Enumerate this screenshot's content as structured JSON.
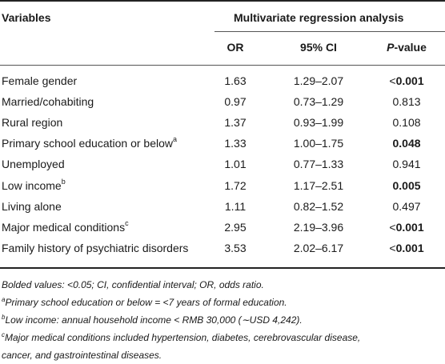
{
  "header": {
    "variables": "Variables",
    "group": "Multivariate regression analysis",
    "or": "OR",
    "ci": "95% CI",
    "p_italic": "P",
    "p_rest": "-value"
  },
  "rows": [
    {
      "variable": "Female gender",
      "sup": "",
      "or": "1.63",
      "ci": "1.29–2.07",
      "p_prefix": "<",
      "p": "0.001",
      "bold": true
    },
    {
      "variable": "Married/cohabiting",
      "sup": "",
      "or": "0.97",
      "ci": "0.73–1.29",
      "p_prefix": "",
      "p": "0.813",
      "bold": false
    },
    {
      "variable": "Rural region",
      "sup": "",
      "or": "1.37",
      "ci": "0.93–1.99",
      "p_prefix": "",
      "p": "0.108",
      "bold": false
    },
    {
      "variable": "Primary school education or below",
      "sup": "a",
      "or": "1.33",
      "ci": "1.00–1.75",
      "p_prefix": "",
      "p": "0.048",
      "bold": true
    },
    {
      "variable": "Unemployed",
      "sup": "",
      "or": "1.01",
      "ci": "0.77–1.33",
      "p_prefix": "",
      "p": "0.941",
      "bold": false
    },
    {
      "variable": "Low income",
      "sup": "b",
      "or": "1.72",
      "ci": "1.17–2.51",
      "p_prefix": "",
      "p": "0.005",
      "bold": true
    },
    {
      "variable": "Living alone",
      "sup": "",
      "or": "1.11",
      "ci": "0.82–1.52",
      "p_prefix": "",
      "p": "0.497",
      "bold": false
    },
    {
      "variable": "Major medical conditions",
      "sup": "c",
      "or": "2.95",
      "ci": "2.19–3.96",
      "p_prefix": "<",
      "p": "0.001",
      "bold": true
    },
    {
      "variable": "Family history of psychiatric disorders",
      "sup": "",
      "or": "3.53",
      "ci": "2.02–6.17",
      "p_prefix": "<",
      "p": "0.001",
      "bold": true
    }
  ],
  "notes": {
    "line1": "Bolded values: <0.05; CI, confidential interval; OR, odds ratio.",
    "a_mark": "a",
    "a_text": "Primary school education or below = <7 years of formal education.",
    "b_mark": "b",
    "b_text": "Low income: annual household income < RMB 30,000 (∼USD 4,242).",
    "c_mark": "c",
    "c_text1": "Major medical conditions included hypertension, diabetes, cerebrovascular disease,",
    "c_text2": "cancer, and gastrointestinal diseases."
  }
}
